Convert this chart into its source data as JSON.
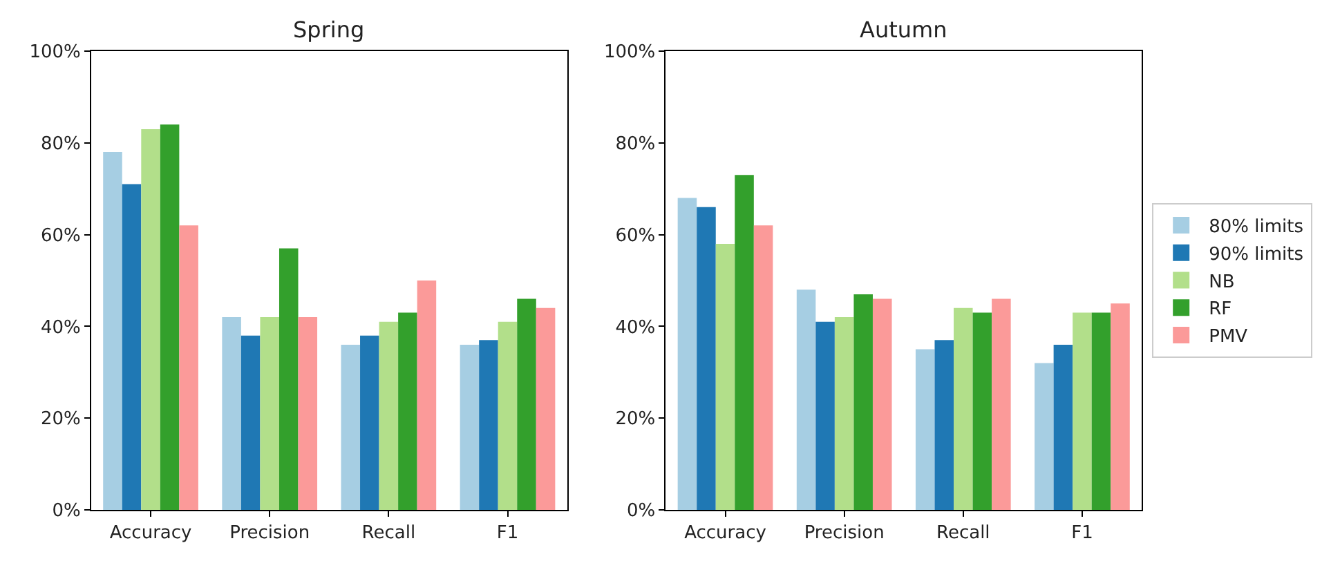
{
  "chart_data": [
    {
      "type": "bar",
      "title": "Spring",
      "categories": [
        "Accuracy",
        "Precision",
        "Recall",
        "F1"
      ],
      "series": [
        {
          "color": "#a6cee3",
          "values": [
            78,
            42,
            36,
            36
          ]
        },
        {
          "color": "#1f78b4",
          "values": [
            71,
            38,
            38,
            37
          ]
        },
        {
          "color": "#b2df8a",
          "values": [
            83,
            42,
            41,
            41
          ]
        },
        {
          "color": "#33a02c",
          "values": [
            84,
            57,
            43,
            46
          ]
        },
        {
          "color": "#fb9a99",
          "values": [
            62,
            42,
            50,
            44
          ]
        }
      ],
      "ylim": [
        0,
        100
      ],
      "yticks": [
        {
          "value": 0,
          "label": "0%"
        },
        {
          "value": 20,
          "label": "20%"
        },
        {
          "value": 40,
          "label": "40%"
        },
        {
          "value": 60,
          "label": "60%"
        },
        {
          "value": 80,
          "label": "80%"
        },
        {
          "value": 100,
          "label": "100%"
        }
      ],
      "tick_labels": true
    },
    {
      "type": "bar",
      "title": "Autumn",
      "categories": [
        "Accuracy",
        "Precision",
        "Recall",
        "F1"
      ],
      "series": [
        {
          "name": "80% limits",
          "color": "#a6cee3",
          "values": [
            68,
            48,
            35,
            32
          ]
        },
        {
          "name": "90% limits",
          "color": "#1f78b4",
          "values": [
            66,
            41,
            37,
            36
          ]
        },
        {
          "name": "NB",
          "color": "#b2df8a",
          "values": [
            58,
            42,
            44,
            43
          ]
        },
        {
          "name": "RF",
          "color": "#33a02c",
          "values": [
            73,
            47,
            43,
            43
          ]
        },
        {
          "name": "PMV",
          "color": "#fb9a99",
          "values": [
            62,
            46,
            46,
            45
          ]
        }
      ],
      "ylim": [
        0,
        100
      ],
      "yticks": [
        {
          "value": 0,
          "label": "0%"
        },
        {
          "value": 20,
          "label": "20%"
        },
        {
          "value": 40,
          "label": "40%"
        },
        {
          "value": 60,
          "label": "60%"
        },
        {
          "value": 80,
          "label": "80%"
        },
        {
          "value": 100,
          "label": "100%"
        }
      ],
      "legend": "right"
    }
  ]
}
